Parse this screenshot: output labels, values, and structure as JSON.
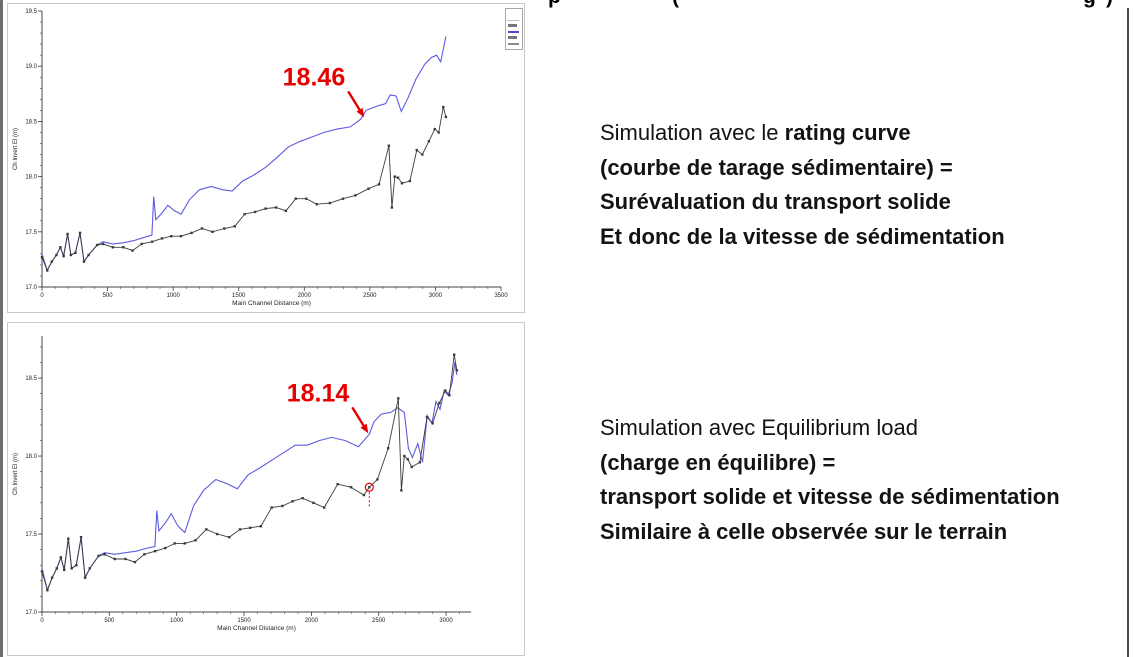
{
  "clipped_header": {
    "fragments": [
      "p",
      "(",
      "g",
      ")"
    ]
  },
  "text_blocks": {
    "rating": {
      "line1_regular": "Simulation avec le ",
      "line1_bold": "rating curve",
      "line2": "(courbe de tarage sédimentaire) =",
      "line3": "Surévaluation du transport solide",
      "line4": "Et donc de la vitesse de sédimentation"
    },
    "equilibrium": {
      "line1_regular": "Simulation avec Equilibrium load",
      "line2": "(charge en équilibre) =",
      "line3": "transport solide et vitesse de sédimentation",
      "line4": "Similaire à celle observée sur le terrain"
    }
  },
  "colors": {
    "series_blue": "#5b5bdf",
    "series_black": "#3c3c3c",
    "annotation_red": "#e60000",
    "axis": "#444444"
  },
  "chart_data": [
    {
      "type": "line",
      "title": "",
      "xlabel": "Main Channel Distance (m)",
      "ylabel": "Ch Invert El (m)",
      "xlim": [
        0,
        3500
      ],
      "ylim": [
        17.0,
        19.5
      ],
      "xticks": [
        0,
        500,
        1000,
        1500,
        2000,
        2500,
        3000,
        3500
      ],
      "yticks": [
        17.0,
        17.5,
        18.0,
        18.5,
        19.0,
        19.5
      ],
      "xminor": 100,
      "yminor": 0.1,
      "annotation": {
        "text": "18.46",
        "x": 2480,
        "y": 18.5
      },
      "series": [
        {
          "name": "blue-line",
          "color": "#5b5bdf",
          "markers": false,
          "points": [
            [
              0,
              17.3
            ],
            [
              40,
              17.15
            ],
            [
              75,
              17.23
            ],
            [
              110,
              17.29
            ],
            [
              140,
              17.36
            ],
            [
              165,
              17.28
            ],
            [
              195,
              17.48
            ],
            [
              220,
              17.29
            ],
            [
              255,
              17.31
            ],
            [
              290,
              17.49
            ],
            [
              320,
              17.23
            ],
            [
              355,
              17.29
            ],
            [
              420,
              17.38
            ],
            [
              465,
              17.41
            ],
            [
              540,
              17.39
            ],
            [
              620,
              17.4
            ],
            [
              700,
              17.42
            ],
            [
              780,
              17.45
            ],
            [
              838,
              17.47
            ],
            [
              852,
              17.82
            ],
            [
              868,
              17.61
            ],
            [
              915,
              17.67
            ],
            [
              960,
              17.74
            ],
            [
              1010,
              17.69
            ],
            [
              1060,
              17.66
            ],
            [
              1125,
              17.79
            ],
            [
              1200,
              17.88
            ],
            [
              1290,
              17.91
            ],
            [
              1380,
              17.88
            ],
            [
              1450,
              17.87
            ],
            [
              1530,
              17.96
            ],
            [
              1610,
              18.01
            ],
            [
              1700,
              18.08
            ],
            [
              1790,
              18.17
            ],
            [
              1880,
              18.27
            ],
            [
              1970,
              18.32
            ],
            [
              2060,
              18.36
            ],
            [
              2150,
              18.4
            ],
            [
              2250,
              18.43
            ],
            [
              2350,
              18.45
            ],
            [
              2430,
              18.52
            ],
            [
              2470,
              18.6
            ],
            [
              2560,
              18.64
            ],
            [
              2620,
              18.66
            ],
            [
              2655,
              18.74
            ],
            [
              2700,
              18.73
            ],
            [
              2740,
              18.59
            ],
            [
              2790,
              18.71
            ],
            [
              2850,
              18.88
            ],
            [
              2920,
              19.02
            ],
            [
              2970,
              19.08
            ],
            [
              3010,
              19.1
            ],
            [
              3040,
              19.04
            ],
            [
              3080,
              19.27
            ]
          ]
        },
        {
          "name": "black-line",
          "color": "#3c3c3c",
          "markers": true,
          "points": [
            [
              0,
              17.27
            ],
            [
              40,
              17.15
            ],
            [
              75,
              17.23
            ],
            [
              110,
              17.29
            ],
            [
              140,
              17.36
            ],
            [
              165,
              17.28
            ],
            [
              195,
              17.48
            ],
            [
              220,
              17.29
            ],
            [
              255,
              17.31
            ],
            [
              290,
              17.49
            ],
            [
              320,
              17.23
            ],
            [
              355,
              17.29
            ],
            [
              420,
              17.38
            ],
            [
              465,
              17.39
            ],
            [
              540,
              17.36
            ],
            [
              620,
              17.36
            ],
            [
              690,
              17.33
            ],
            [
              760,
              17.39
            ],
            [
              840,
              17.41
            ],
            [
              915,
              17.44
            ],
            [
              985,
              17.46
            ],
            [
              1060,
              17.46
            ],
            [
              1140,
              17.49
            ],
            [
              1220,
              17.53
            ],
            [
              1300,
              17.5
            ],
            [
              1390,
              17.53
            ],
            [
              1470,
              17.55
            ],
            [
              1545,
              17.66
            ],
            [
              1625,
              17.68
            ],
            [
              1705,
              17.71
            ],
            [
              1785,
              17.72
            ],
            [
              1860,
              17.69
            ],
            [
              1935,
              17.8
            ],
            [
              2015,
              17.8
            ],
            [
              2095,
              17.75
            ],
            [
              2195,
              17.76
            ],
            [
              2295,
              17.8
            ],
            [
              2390,
              17.83
            ],
            [
              2490,
              17.89
            ],
            [
              2570,
              17.93
            ],
            [
              2645,
              18.28
            ],
            [
              2668,
              17.72
            ],
            [
              2690,
              18.0
            ],
            [
              2715,
              17.99
            ],
            [
              2745,
              17.94
            ],
            [
              2805,
              17.96
            ],
            [
              2858,
              18.24
            ],
            [
              2900,
              18.2
            ],
            [
              2950,
              18.32
            ],
            [
              2995,
              18.43
            ],
            [
              3025,
              18.4
            ],
            [
              3060,
              18.63
            ],
            [
              3080,
              18.54
            ]
          ]
        }
      ]
    },
    {
      "type": "line",
      "title": "",
      "xlabel": "Main Channel Distance (m)",
      "ylabel": "Ch Invert El (m)",
      "xlim": [
        0,
        3185
      ],
      "ylim": [
        17.0,
        18.77
      ],
      "xticks": [
        0,
        500,
        1000,
        1500,
        2000,
        2500,
        3000
      ],
      "yticks": [
        17.0,
        17.5,
        18.0,
        18.5
      ],
      "xminor": 100,
      "yminor": 0.1,
      "annotation": {
        "text": "18.14",
        "x": 2445,
        "y": 18.12
      },
      "highlight_point": {
        "x": 2430,
        "y": 17.8
      },
      "series": [
        {
          "name": "blue-line",
          "color": "#5b5bdf",
          "markers": false,
          "points": [
            [
              0,
              17.28
            ],
            [
              40,
              17.14
            ],
            [
              75,
              17.22
            ],
            [
              110,
              17.28
            ],
            [
              140,
              17.35
            ],
            [
              165,
              17.27
            ],
            [
              195,
              17.47
            ],
            [
              220,
              17.28
            ],
            [
              255,
              17.3
            ],
            [
              290,
              17.48
            ],
            [
              320,
              17.22
            ],
            [
              355,
              17.28
            ],
            [
              420,
              17.36
            ],
            [
              465,
              17.38
            ],
            [
              540,
              17.37
            ],
            [
              620,
              17.38
            ],
            [
              700,
              17.39
            ],
            [
              780,
              17.41
            ],
            [
              838,
              17.42
            ],
            [
              852,
              17.65
            ],
            [
              868,
              17.52
            ],
            [
              915,
              17.57
            ],
            [
              960,
              17.63
            ],
            [
              1010,
              17.55
            ],
            [
              1060,
              17.51
            ],
            [
              1125,
              17.68
            ],
            [
              1200,
              17.78
            ],
            [
              1290,
              17.85
            ],
            [
              1380,
              17.82
            ],
            [
              1450,
              17.79
            ],
            [
              1530,
              17.88
            ],
            [
              1610,
              17.92
            ],
            [
              1700,
              17.97
            ],
            [
              1790,
              18.02
            ],
            [
              1880,
              18.07
            ],
            [
              1970,
              18.07
            ],
            [
              2060,
              18.1
            ],
            [
              2150,
              18.12
            ],
            [
              2250,
              18.1
            ],
            [
              2350,
              18.06
            ],
            [
              2430,
              18.14
            ],
            [
              2465,
              18.22
            ],
            [
              2520,
              18.27
            ],
            [
              2590,
              18.28
            ],
            [
              2640,
              18.31
            ],
            [
              2690,
              18.28
            ],
            [
              2720,
              18.05
            ],
            [
              2750,
              17.99
            ],
            [
              2790,
              18.08
            ],
            [
              2825,
              17.96
            ],
            [
              2860,
              18.26
            ],
            [
              2895,
              18.21
            ],
            [
              2925,
              18.35
            ],
            [
              2955,
              18.3
            ],
            [
              2985,
              18.42
            ],
            [
              3015,
              18.39
            ],
            [
              3045,
              18.47
            ],
            [
              3065,
              18.6
            ],
            [
              3080,
              18.52
            ]
          ]
        },
        {
          "name": "black-line",
          "color": "#3c3c3c",
          "markers": true,
          "points": [
            [
              0,
              17.26
            ],
            [
              40,
              17.14
            ],
            [
              75,
              17.22
            ],
            [
              110,
              17.28
            ],
            [
              140,
              17.35
            ],
            [
              165,
              17.27
            ],
            [
              195,
              17.47
            ],
            [
              220,
              17.28
            ],
            [
              255,
              17.3
            ],
            [
              290,
              17.48
            ],
            [
              320,
              17.22
            ],
            [
              355,
              17.28
            ],
            [
              420,
              17.36
            ],
            [
              465,
              17.37
            ],
            [
              540,
              17.34
            ],
            [
              620,
              17.34
            ],
            [
              690,
              17.32
            ],
            [
              760,
              17.37
            ],
            [
              840,
              17.39
            ],
            [
              915,
              17.41
            ],
            [
              985,
              17.44
            ],
            [
              1060,
              17.44
            ],
            [
              1140,
              17.46
            ],
            [
              1220,
              17.53
            ],
            [
              1300,
              17.5
            ],
            [
              1390,
              17.48
            ],
            [
              1470,
              17.53
            ],
            [
              1545,
              17.54
            ],
            [
              1625,
              17.55
            ],
            [
              1705,
              17.67
            ],
            [
              1785,
              17.68
            ],
            [
              1860,
              17.71
            ],
            [
              1935,
              17.73
            ],
            [
              2015,
              17.7
            ],
            [
              2095,
              17.67
            ],
            [
              2195,
              17.82
            ],
            [
              2295,
              17.8
            ],
            [
              2390,
              17.75
            ],
            [
              2430,
              17.8
            ],
            [
              2490,
              17.85
            ],
            [
              2570,
              18.05
            ],
            [
              2645,
              18.37
            ],
            [
              2668,
              17.78
            ],
            [
              2690,
              18.0
            ],
            [
              2715,
              17.98
            ],
            [
              2745,
              17.93
            ],
            [
              2805,
              17.96
            ],
            [
              2858,
              18.25
            ],
            [
              2900,
              18.21
            ],
            [
              2950,
              18.34
            ],
            [
              2995,
              18.42
            ],
            [
              3025,
              18.39
            ],
            [
              3060,
              18.65
            ],
            [
              3080,
              18.55
            ]
          ]
        }
      ]
    }
  ]
}
